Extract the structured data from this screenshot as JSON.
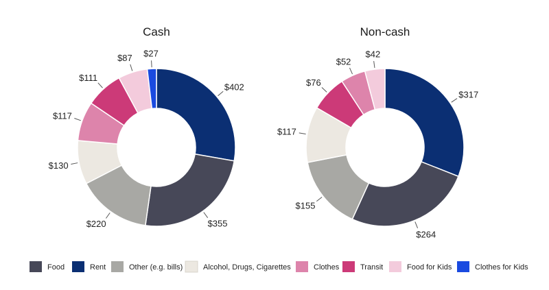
{
  "colors": {
    "Food": "#474858",
    "Rent": "#0b2f73",
    "Other (e.g. bills)": "#a8a8a4",
    "Alcohol, Drugs, Cigarettes": "#ece8e1",
    "Clothes": "#dd84ab",
    "Transit": "#cc3a78",
    "Food for Kids": "#f3cbdc",
    "Clothes for Kids": "#1a4ae0"
  },
  "legend": [
    "Food",
    "Rent",
    "Other (e.g. bills)",
    "Alcohol, Drugs, Cigarettes",
    "Clothes",
    "Transit",
    "Food for Kids",
    "Clothes for Kids"
  ],
  "chart_data": [
    {
      "type": "pie",
      "variant": "donut",
      "title": "Cash",
      "slices": [
        {
          "category": "Rent",
          "value": 402,
          "label": "$402"
        },
        {
          "category": "Food",
          "value": 355,
          "label": "$355"
        },
        {
          "category": "Other (e.g. bills)",
          "value": 220,
          "label": "$220"
        },
        {
          "category": "Alcohol, Drugs, Cigarettes",
          "value": 130,
          "label": "$130"
        },
        {
          "category": "Clothes",
          "value": 117,
          "label": "$117"
        },
        {
          "category": "Transit",
          "value": 111,
          "label": "$111"
        },
        {
          "category": "Food for Kids",
          "value": 87,
          "label": "$87"
        },
        {
          "category": "Clothes for Kids",
          "value": 27,
          "label": "$27"
        }
      ]
    },
    {
      "type": "pie",
      "variant": "donut",
      "title": "Non-cash",
      "slices": [
        {
          "category": "Rent",
          "value": 317,
          "label": "$317"
        },
        {
          "category": "Food",
          "value": 264,
          "label": "$264"
        },
        {
          "category": "Other (e.g. bills)",
          "value": 155,
          "label": "$155"
        },
        {
          "category": "Alcohol, Drugs, Cigarettes",
          "value": 117,
          "label": "$117"
        },
        {
          "category": "Transit",
          "value": 76,
          "label": "$76"
        },
        {
          "category": "Clothes",
          "value": 52,
          "label": "$52"
        },
        {
          "category": "Food for Kids",
          "value": 42,
          "label": "$42"
        }
      ]
    }
  ]
}
